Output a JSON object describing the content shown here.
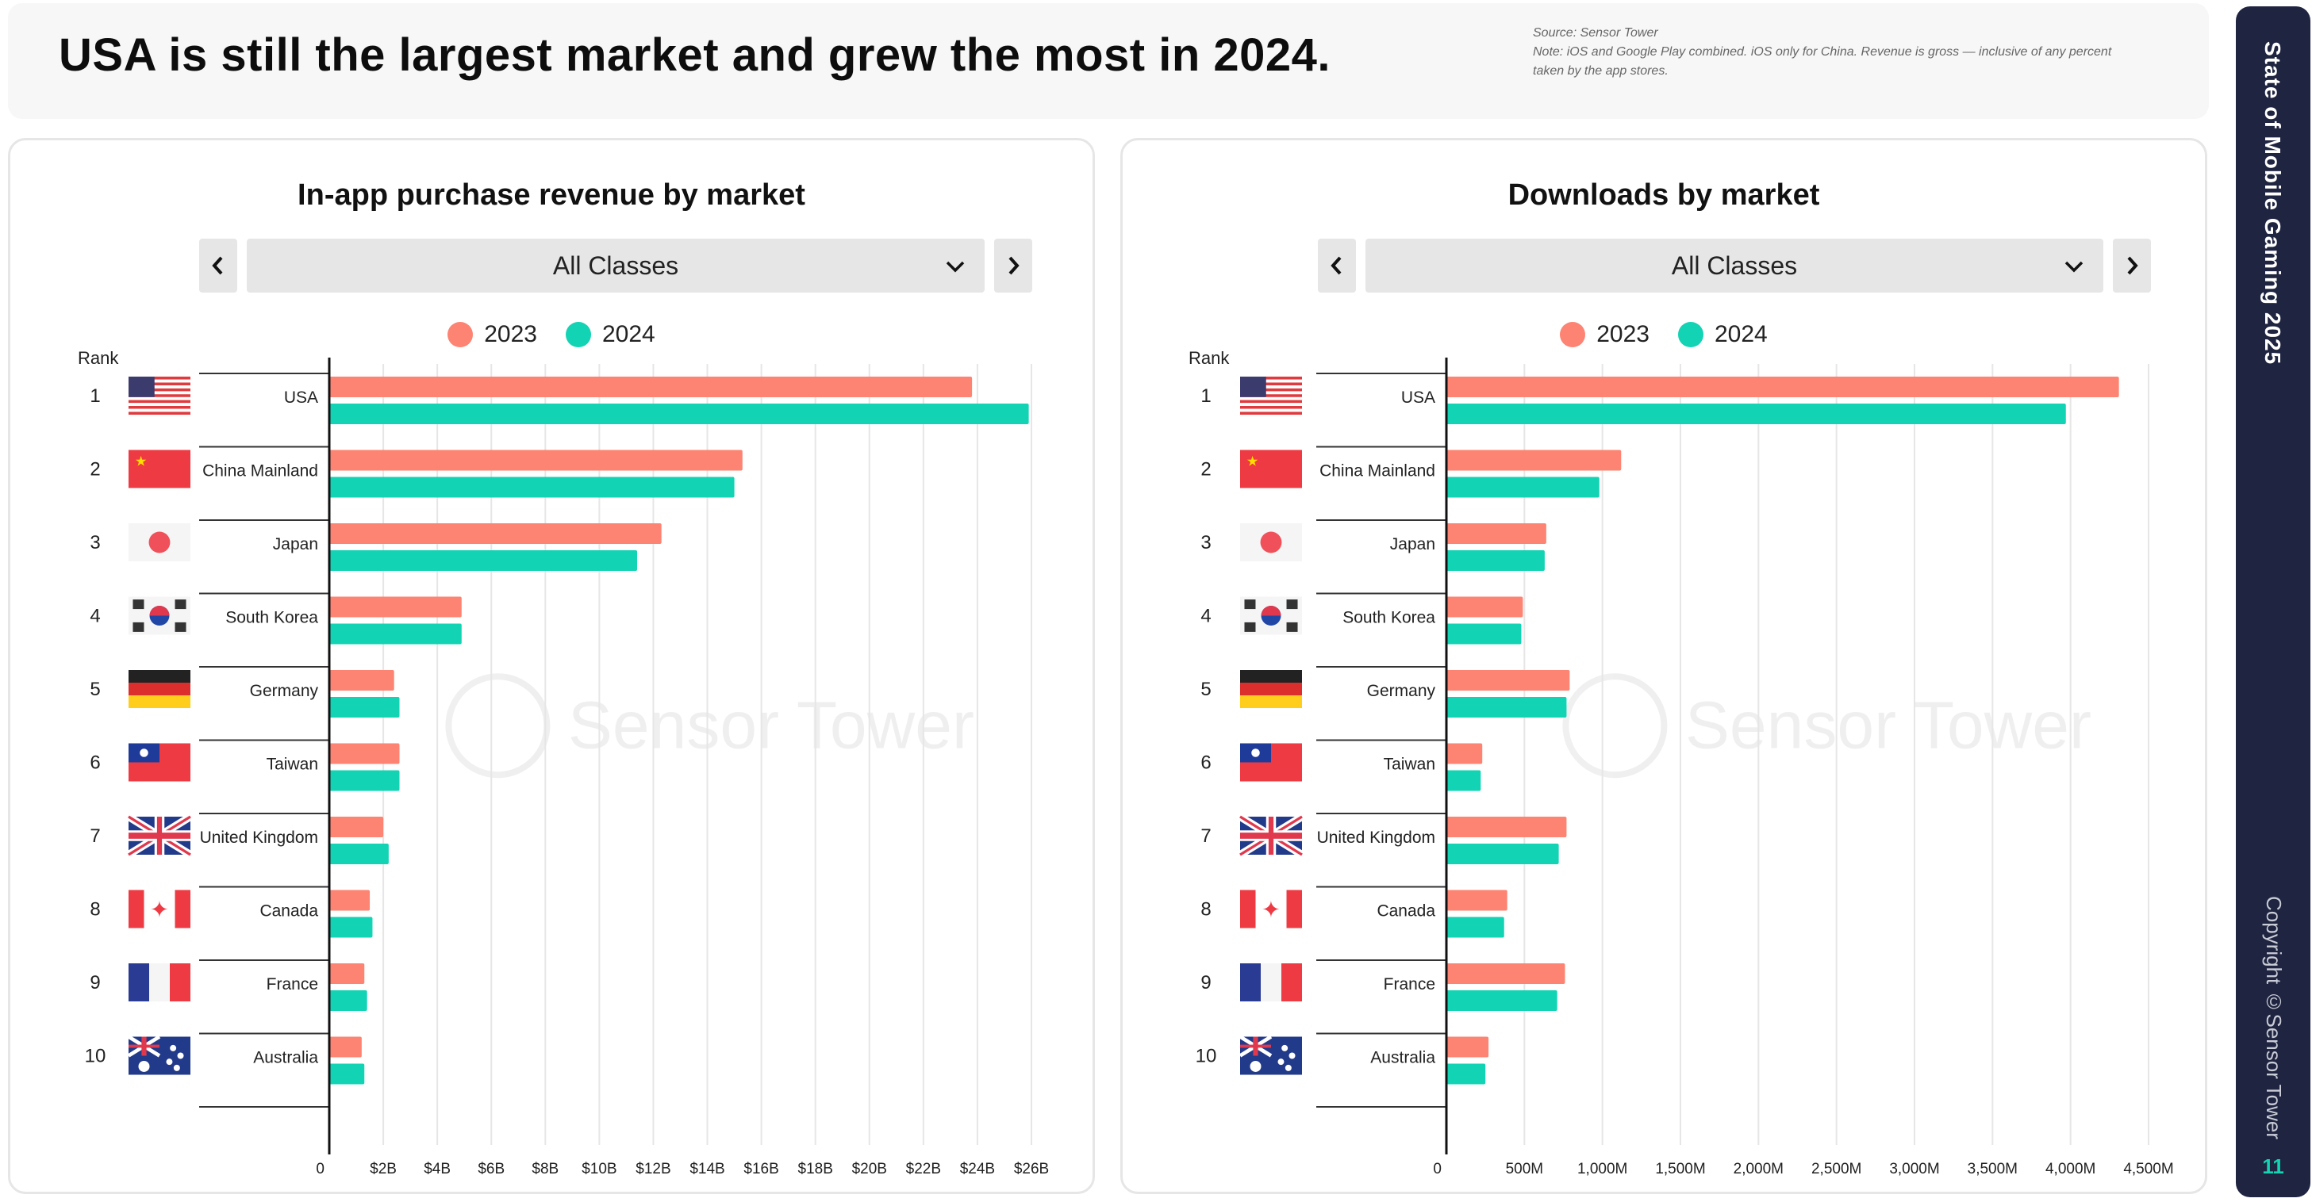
{
  "headline": "USA is still the largest market and grew the most in 2024.",
  "source_note": {
    "line1": "Source: Sensor Tower",
    "line2": "Note: iOS and Google Play combined. iOS only for China. Revenue is gross — inclusive of any percent",
    "line3": "taken by the app stores."
  },
  "sidebar": {
    "title": "State of Mobile Gaming 2025",
    "copyright": "Copyright ©Sensor Tower",
    "page_number": "11"
  },
  "colors": {
    "y2023": "#fd8372",
    "y2024": "#12d3b3",
    "grid": "#e6e6e6",
    "axis": "#111111"
  },
  "watermark": "Sensor Tower",
  "panels": [
    {
      "title": "In-app purchase revenue by market",
      "dropdown": "All Classes",
      "legend": [
        "2023",
        "2024"
      ],
      "rank_header": "Rank"
    },
    {
      "title": "Downloads by market",
      "dropdown": "All Classes",
      "legend": [
        "2023",
        "2024"
      ],
      "rank_header": "Rank"
    }
  ],
  "markets": [
    {
      "rank": "1",
      "name": "USA",
      "flag": "usa"
    },
    {
      "rank": "2",
      "name": "China Mainland",
      "flag": "china"
    },
    {
      "rank": "3",
      "name": "Japan",
      "flag": "japan"
    },
    {
      "rank": "4",
      "name": "South Korea",
      "flag": "korea"
    },
    {
      "rank": "5",
      "name": "Germany",
      "flag": "germany"
    },
    {
      "rank": "6",
      "name": "Taiwan",
      "flag": "taiwan"
    },
    {
      "rank": "7",
      "name": "United Kingdom",
      "flag": "uk"
    },
    {
      "rank": "8",
      "name": "Canada",
      "flag": "canada"
    },
    {
      "rank": "9",
      "name": "France",
      "flag": "france"
    },
    {
      "rank": "10",
      "name": "Australia",
      "flag": "australia"
    }
  ],
  "chart_data": [
    {
      "type": "bar",
      "orientation": "horizontal",
      "title": "In-app purchase revenue by market",
      "categories": [
        "USA",
        "China Mainland",
        "Japan",
        "South Korea",
        "Germany",
        "Taiwan",
        "United Kingdom",
        "Canada",
        "France",
        "Australia"
      ],
      "series": [
        {
          "name": "2023",
          "values": [
            23.8,
            15.3,
            12.3,
            4.9,
            2.4,
            2.6,
            2.0,
            1.5,
            1.3,
            1.2
          ]
        },
        {
          "name": "2024",
          "values": [
            25.9,
            15.0,
            11.4,
            4.9,
            2.6,
            2.6,
            2.2,
            1.6,
            1.4,
            1.3
          ]
        }
      ],
      "xlim": [
        0,
        26
      ],
      "ticks": [
        0,
        2,
        4,
        6,
        8,
        10,
        12,
        14,
        16,
        18,
        20,
        22,
        24,
        26
      ],
      "tick_labels": [
        "0",
        "$2B",
        "$4B",
        "$6B",
        "$8B",
        "$10B",
        "$12B",
        "$14B",
        "$16B",
        "$18B",
        "$20B",
        "$22B",
        "$24B",
        "$26B"
      ],
      "unit": "USD billions"
    },
    {
      "type": "bar",
      "orientation": "horizontal",
      "title": "Downloads by market",
      "categories": [
        "USA",
        "China Mainland",
        "Japan",
        "South Korea",
        "Germany",
        "Taiwan",
        "United Kingdom",
        "Canada",
        "France",
        "Australia"
      ],
      "series": [
        {
          "name": "2023",
          "values": [
            4310,
            1120,
            640,
            490,
            790,
            230,
            770,
            390,
            760,
            270
          ]
        },
        {
          "name": "2024",
          "values": [
            3970,
            980,
            630,
            480,
            770,
            220,
            720,
            370,
            710,
            250
          ]
        }
      ],
      "xlim": [
        0,
        4500
      ],
      "ticks": [
        0,
        500,
        1000,
        1500,
        2000,
        2500,
        3000,
        3500,
        4000,
        4500
      ],
      "tick_labels": [
        "0",
        "500M",
        "1,000M",
        "1,500M",
        "2,000M",
        "2,500M",
        "3,000M",
        "3,500M",
        "4,000M",
        "4,500M"
      ],
      "unit": "downloads (millions)"
    }
  ]
}
